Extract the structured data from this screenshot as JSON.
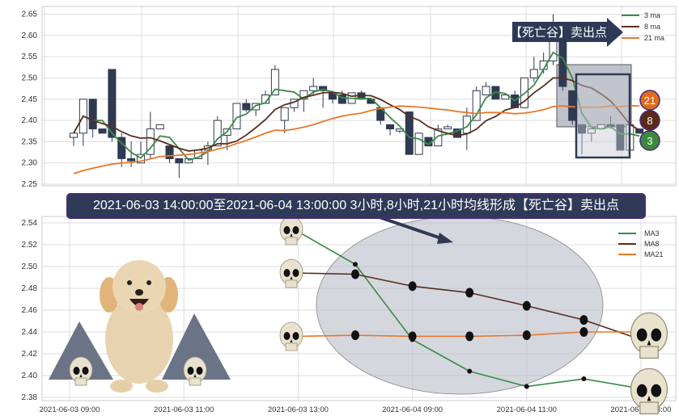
{
  "chart_data": [
    {
      "type": "candlestick",
      "title": "",
      "ylim": [
        2.25,
        2.65
      ],
      "yticks": [
        "2.25",
        "2.30",
        "2.35",
        "2.40",
        "2.45",
        "2.50",
        "2.55",
        "2.60",
        "2.65"
      ],
      "grid": true,
      "legend": {
        "placement": "top-right",
        "entries": [
          "3 ma",
          "8 ma",
          "21 ma"
        ]
      },
      "colors": {
        "ma3": "#3a8a45",
        "ma8": "#5a2e1e",
        "ma21": "#e8772a",
        "candle": "#2f3a52"
      },
      "candles": [
        [
          2.36,
          2.37,
          2.34,
          2.37
        ],
        [
          2.37,
          2.45,
          2.34,
          2.45
        ],
        [
          2.45,
          2.45,
          2.36,
          2.38
        ],
        [
          2.38,
          2.38,
          2.37,
          2.37
        ],
        [
          2.52,
          2.52,
          2.35,
          2.36
        ],
        [
          2.36,
          2.37,
          2.29,
          2.31
        ],
        [
          2.31,
          2.35,
          2.29,
          2.305
        ],
        [
          2.3,
          2.35,
          2.3,
          2.32
        ],
        [
          2.32,
          2.42,
          2.31,
          2.38
        ],
        [
          2.38,
          2.39,
          2.38,
          2.39
        ],
        [
          2.34,
          2.34,
          2.3,
          2.31
        ],
        [
          2.31,
          2.31,
          2.265,
          2.3
        ],
        [
          2.3,
          2.31,
          2.3,
          2.31
        ],
        [
          2.31,
          2.33,
          2.31,
          2.33
        ],
        [
          2.33,
          2.35,
          2.295,
          2.34
        ],
        [
          2.34,
          2.41,
          2.34,
          2.4
        ],
        [
          2.365,
          2.38,
          2.33,
          2.38
        ],
        [
          2.38,
          2.44,
          2.38,
          2.44
        ],
        [
          2.44,
          2.45,
          2.42,
          2.425
        ],
        [
          2.425,
          2.44,
          2.41,
          2.44
        ],
        [
          2.44,
          2.47,
          2.44,
          2.46
        ],
        [
          2.46,
          2.53,
          2.46,
          2.52
        ],
        [
          2.4,
          2.43,
          2.37,
          2.43
        ],
        [
          2.43,
          2.45,
          2.42,
          2.45
        ],
        [
          2.45,
          2.47,
          2.42,
          2.47
        ],
        [
          2.47,
          2.5,
          2.46,
          2.48
        ],
        [
          2.48,
          2.48,
          2.43,
          2.47
        ],
        [
          2.465,
          2.47,
          2.44,
          2.45
        ],
        [
          2.46,
          2.47,
          2.44,
          2.44
        ],
        [
          2.44,
          2.465,
          2.44,
          2.465
        ],
        [
          2.465,
          2.47,
          2.45,
          2.45
        ],
        [
          2.45,
          2.45,
          2.44,
          2.44
        ],
        [
          2.43,
          2.43,
          2.39,
          2.4
        ],
        [
          2.39,
          2.39,
          2.365,
          2.38
        ],
        [
          2.375,
          2.38,
          2.37,
          2.38
        ],
        [
          2.42,
          2.42,
          2.32,
          2.32
        ],
        [
          2.32,
          2.37,
          2.32,
          2.37
        ],
        [
          2.36,
          2.36,
          2.34,
          2.34
        ],
        [
          2.34,
          2.39,
          2.34,
          2.38
        ],
        [
          2.38,
          2.39,
          2.38,
          2.385
        ],
        [
          2.38,
          2.38,
          2.36,
          2.36
        ],
        [
          2.37,
          2.43,
          2.33,
          2.41
        ],
        [
          2.4,
          2.48,
          2.4,
          2.47
        ],
        [
          2.46,
          2.49,
          2.46,
          2.48
        ],
        [
          2.48,
          2.48,
          2.45,
          2.45
        ],
        [
          2.45,
          2.46,
          2.45,
          2.46
        ],
        [
          2.46,
          2.47,
          2.43,
          2.43
        ],
        [
          2.43,
          2.5,
          2.43,
          2.5
        ],
        [
          2.5,
          2.55,
          2.49,
          2.52
        ],
        [
          2.52,
          2.56,
          2.51,
          2.54
        ],
        [
          2.54,
          2.65,
          2.53,
          2.62
        ],
        [
          2.6,
          2.6,
          2.47,
          2.48
        ],
        [
          2.47,
          2.47,
          2.39,
          2.4
        ],
        [
          2.39,
          2.39,
          2.32,
          2.37
        ],
        [
          2.37,
          2.38,
          2.35,
          2.38
        ],
        [
          2.38,
          2.39,
          2.38,
          2.39
        ],
        [
          2.39,
          2.41,
          2.38,
          2.385
        ],
        [
          2.39,
          2.39,
          2.33,
          2.33
        ],
        [
          2.33,
          2.39,
          2.32,
          2.39
        ],
        [
          2.38,
          2.38,
          2.37,
          2.37
        ]
      ],
      "ma_windows": [
        3,
        8,
        21
      ],
      "annotation": "【死亡谷】卖出点",
      "badges": [
        "21",
        "8",
        "3"
      ]
    },
    {
      "type": "line",
      "ylim": [
        2.38,
        2.54
      ],
      "yticks": [
        "2.38",
        "2.40",
        "2.42",
        "2.44",
        "2.46",
        "2.48",
        "2.50",
        "2.52",
        "2.54"
      ],
      "x_ticks": [
        "2021-06-03 09:00",
        "2021-06-03 11:00",
        "2021-06-03 13:00",
        "2021-06-04 09:00",
        "2021-06-04 11:00",
        "2021-06-04 13:00"
      ],
      "grid": true,
      "legend": {
        "placement": "top-right",
        "entries": [
          "MA3",
          "MA8",
          "MA21"
        ]
      },
      "x_index": [
        2,
        2.5,
        3,
        3.5,
        4,
        4.5,
        5
      ],
      "series": [
        {
          "name": "MA3",
          "color": "#3a8a45",
          "values": [
            2.532,
            2.502,
            2.433,
            2.404,
            2.39,
            2.397,
            2.388
          ]
        },
        {
          "name": "MA8",
          "color": "#5a2e1e",
          "values": [
            2.494,
            2.493,
            2.482,
            2.476,
            2.464,
            2.451,
            2.433
          ]
        },
        {
          "name": "MA21",
          "color": "#e8772a",
          "values": [
            2.436,
            2.437,
            2.436,
            2.436,
            2.437,
            2.44,
            2.44
          ]
        }
      ]
    }
  ],
  "banner": "2021-06-03 14:00:00至2021-06-04 13:00:00 3小时,8小时,21小时均线形成【死亡谷】卖出点"
}
